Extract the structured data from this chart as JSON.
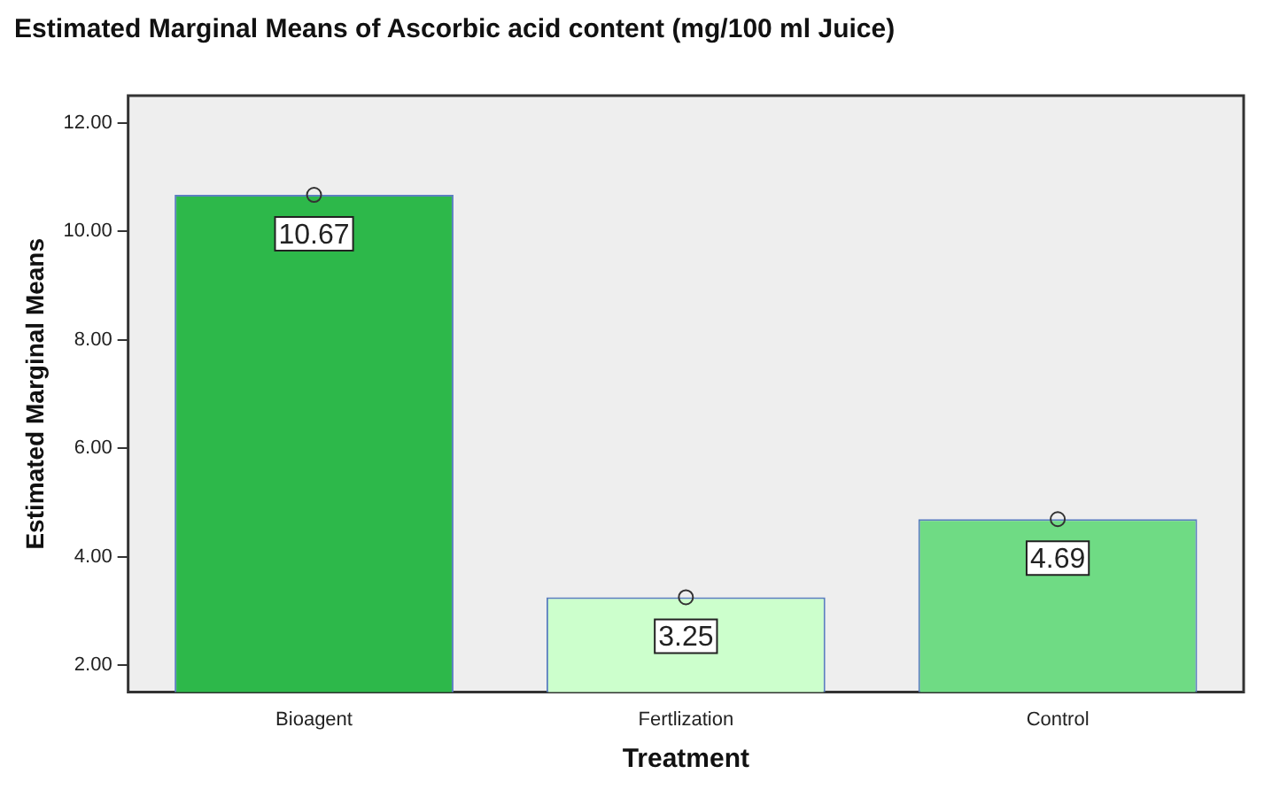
{
  "chart_data": {
    "type": "bar",
    "title": "Estimated Marginal Means of Ascorbic acid content (mg/100 ml Juice)",
    "xlabel": "Treatment",
    "ylabel": "Estimated Marginal Means",
    "categories": [
      "Bioagent",
      "Fertlization",
      "Control"
    ],
    "series": [
      {
        "colors": [
          "#2db84a",
          "#ccffcc",
          "#6fdb84"
        ],
        "values": [
          10.67,
          3.25,
          4.69
        ],
        "value_labels": [
          "10.67",
          "3.25",
          "4.69"
        ]
      },
      {
        "type": "scatter",
        "color": "#333333",
        "marker": "circle",
        "x": [
          "Bioagent",
          "Fertlization",
          "Control"
        ],
        "values": [
          10.67,
          3.25,
          4.69
        ]
      }
    ],
    "grid": false,
    "legend": false,
    "ylim": [
      1.5,
      12.5
    ],
    "yticks": [
      {
        "value": 2,
        "label": "2.00"
      },
      {
        "value": 4,
        "label": "4.00"
      },
      {
        "value": 6,
        "label": "6.00"
      },
      {
        "value": 8,
        "label": "8.00"
      },
      {
        "value": 10,
        "label": "10.00"
      },
      {
        "value": 12,
        "label": "12.00"
      }
    ]
  }
}
